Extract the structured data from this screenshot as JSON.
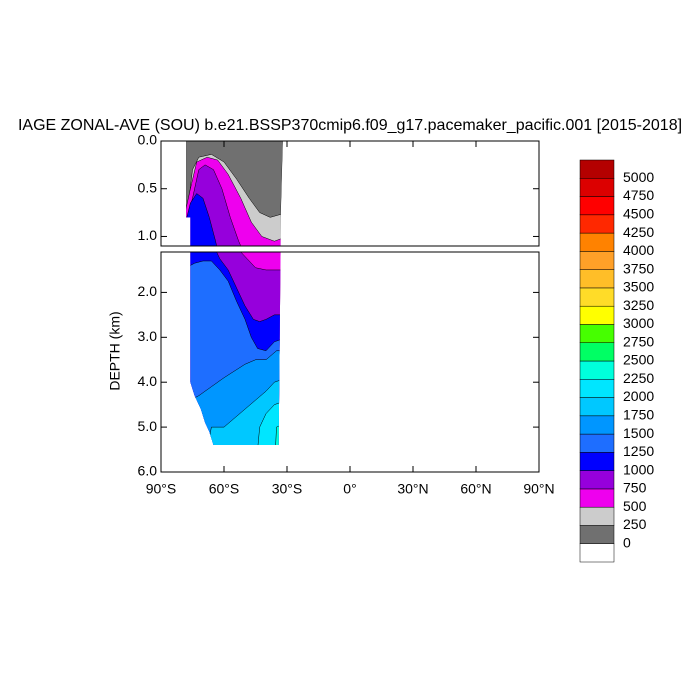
{
  "chart_data": {
    "type": "contour",
    "title": "IAGE ZONAL-AVE (SOU) b.e21.BSSP370cmip6.f09_g17.pacemaker_pacific.001 [2015-2018]",
    "ylabel": "DEPTH (km)",
    "xlim": [
      -90,
      90
    ],
    "xticks": [
      {
        "value": -90,
        "label": "90°S"
      },
      {
        "value": -60,
        "label": "60°S"
      },
      {
        "value": -30,
        "label": "30°S"
      },
      {
        "value": 0,
        "label": "0°"
      },
      {
        "value": 30,
        "label": "30°N"
      },
      {
        "value": 60,
        "label": "60°N"
      },
      {
        "value": 90,
        "label": "90°N"
      }
    ],
    "y_reversed": true,
    "panels": [
      {
        "ylim": [
          0,
          1.1
        ],
        "yticks": [
          {
            "value": 0,
            "label": "0.0"
          },
          {
            "value": 0.5,
            "label": "0.5"
          },
          {
            "value": 1,
            "label": "1.0"
          }
        ]
      },
      {
        "ylim": [
          1.1,
          6
        ],
        "yticks": [
          {
            "value": 2,
            "label": "2.0"
          },
          {
            "value": 3,
            "label": "3.0"
          },
          {
            "value": 4,
            "label": "4.0"
          },
          {
            "value": 5,
            "label": "5.0"
          },
          {
            "value": 6,
            "label": "6.0"
          }
        ]
      }
    ],
    "levels": [
      0,
      250,
      500,
      750,
      1000,
      1250,
      1500,
      1750,
      2000,
      2250,
      2500,
      2750,
      3000,
      3250,
      3500,
      3750,
      4000,
      4250,
      4500,
      4750,
      5000
    ],
    "colors": [
      "#ffffff",
      "#707070",
      "#cccccc",
      "#ee00ee",
      "#9600dc",
      "#0000ff",
      "#1e6eff",
      "#0096ff",
      "#00c8ff",
      "#00e6ff",
      "#00ffdc",
      "#00ff64",
      "#46ff00",
      "#ffff00",
      "#ffdc28",
      "#ffbe28",
      "#ffa028",
      "#ff8200",
      "#ff2800",
      "#ff0000",
      "#dc0000",
      "#b40000"
    ],
    "regions": [
      {
        "value": 0,
        "lat": [
          -78,
          -32,
          -33,
          -34,
          -65,
          -67,
          -69,
          -71,
          -74,
          -76,
          -76,
          -78
        ],
        "depth": [
          0,
          0,
          0.8,
          5.4,
          5.4,
          5.1,
          4.9,
          4.6,
          4.3,
          4.0,
          0.8,
          0.8
        ]
      },
      {
        "value": 250,
        "lat": [
          -80,
          -78,
          -75,
          -72,
          -66,
          -60,
          -54,
          -48,
          -43,
          -38,
          -30,
          -30,
          -80
        ],
        "depth": [
          0.85,
          0.85,
          0.3,
          0.17,
          0.14,
          0.22,
          0.4,
          0.6,
          0.75,
          0.8,
          0.75,
          6,
          6
        ]
      },
      {
        "value": 500,
        "lat": [
          -80,
          -76,
          -73,
          -68,
          -63,
          -58,
          -52,
          -47,
          -42,
          -36,
          -30,
          -30,
          -80
        ],
        "depth": [
          0.9,
          0.5,
          0.22,
          0.17,
          0.2,
          0.35,
          0.6,
          0.85,
          1.0,
          1.05,
          1.0,
          6,
          6
        ]
      },
      {
        "value": 750,
        "lat": [
          -80,
          -75,
          -72,
          -69,
          -65,
          -61,
          -57,
          -53,
          -49,
          -45,
          -40,
          -30,
          -30,
          -80
        ],
        "depth": [
          1.0,
          0.6,
          0.3,
          0.25,
          0.3,
          0.5,
          0.8,
          1.05,
          1.25,
          1.45,
          1.5,
          1.5,
          6,
          6
        ]
      },
      {
        "value": 1000,
        "lat": [
          -80,
          -76,
          -73,
          -70,
          -67,
          -64,
          -62,
          -58,
          -54,
          -50,
          -46,
          -43,
          -40,
          -36,
          -30,
          -30,
          -80
        ],
        "depth": [
          1.0,
          0.65,
          0.55,
          0.6,
          0.8,
          1.05,
          1.25,
          1.5,
          1.9,
          2.3,
          2.6,
          2.65,
          2.6,
          2.5,
          2.5,
          6,
          6
        ]
      },
      {
        "value": 1250,
        "lat": [
          -80,
          -74,
          -70,
          -66,
          -62,
          -58,
          -54,
          -50,
          -47,
          -44,
          -40,
          -36,
          -30,
          -30,
          -80
        ],
        "depth": [
          1.5,
          1.35,
          1.3,
          1.3,
          1.5,
          1.75,
          2.2,
          2.6,
          3.0,
          3.25,
          3.3,
          3.1,
          3.0,
          6,
          6
        ]
      },
      {
        "value": 1500,
        "lat": [
          -80,
          -72,
          -66,
          -60,
          -55,
          -50,
          -45,
          -40,
          -35,
          -30,
          -30,
          -80
        ],
        "depth": [
          4.5,
          4.3,
          4.1,
          3.9,
          3.75,
          3.6,
          3.5,
          3.5,
          3.3,
          3.3,
          6,
          6
        ]
      },
      {
        "value": 1750,
        "lat": [
          -70,
          -66,
          -60,
          -55,
          -50,
          -45,
          -40,
          -36,
          -30,
          -30
        ],
        "depth": [
          6,
          5.0,
          5.0,
          4.8,
          4.6,
          4.4,
          4.2,
          4.0,
          3.9,
          6
        ]
      },
      {
        "value": 2000,
        "lat": [
          -45,
          -43,
          -40,
          -36,
          -30,
          -30
        ],
        "depth": [
          6,
          5.0,
          4.7,
          4.5,
          4.4,
          6
        ]
      },
      {
        "value": 2250,
        "lat": [
          -36,
          -35,
          -30,
          -30
        ],
        "depth": [
          6,
          5.0,
          4.9,
          6
        ]
      },
      {
        "value": 2500,
        "lat": [
          -34,
          -33.5,
          -30,
          -30
        ],
        "depth": [
          6,
          5.2,
          5.2,
          6
        ]
      }
    ]
  }
}
